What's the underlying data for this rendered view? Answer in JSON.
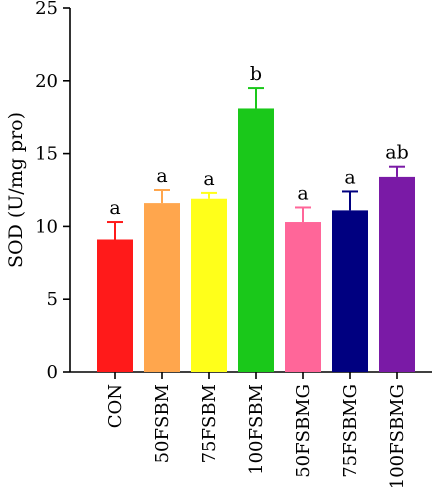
{
  "chart_data": {
    "type": "bar",
    "title": "",
    "xlabel": "",
    "ylabel": "SOD (U/mg pro)",
    "ylim": [
      0,
      25
    ],
    "yticks": [
      0,
      5,
      10,
      15,
      20,
      25
    ],
    "grid": false,
    "categories": [
      "CON",
      "50FSBM",
      "75FSBM",
      "100FSBM",
      "50FSBMG",
      "75FSBMG",
      "100FSBMG"
    ],
    "values": [
      9.1,
      11.6,
      11.9,
      18.1,
      10.3,
      11.1,
      13.4
    ],
    "errors": [
      1.2,
      0.9,
      0.4,
      1.4,
      1.0,
      1.3,
      0.7
    ],
    "significance": [
      "a",
      "a",
      "a",
      "b",
      "a",
      "a",
      "ab"
    ],
    "colors": [
      "#ff1a1a",
      "#ffa64d",
      "#ffff1a",
      "#1ac81a",
      "#ff6699",
      "#000080",
      "#7a1aa6"
    ]
  }
}
